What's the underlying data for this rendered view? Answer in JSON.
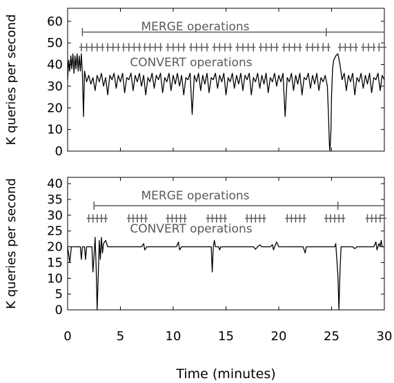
{
  "chart_data": [
    {
      "type": "line",
      "ylabel": "K queries per second",
      "xlim": [
        0,
        30
      ],
      "ylim": [
        0,
        66
      ],
      "yticks": [
        0,
        10,
        20,
        30,
        40,
        50,
        60
      ],
      "xticks": [
        0,
        5,
        10,
        15,
        20,
        25,
        30
      ],
      "show_xtick_labels": false,
      "grid": false,
      "merge": {
        "label": "MERGE operations",
        "level": 55,
        "marks": [
          1.4,
          24.5,
          30.0
        ]
      },
      "convert": {
        "label": "CONVERT operations",
        "level": 48,
        "groups": [
          [
            1.3,
            1.8,
            2.3,
            2.8,
            3.3
          ],
          [
            3.8,
            4.3,
            4.8
          ],
          [
            5.3,
            5.8,
            6.3,
            6.8
          ],
          [
            7.3,
            7.8,
            8.3,
            8.8
          ],
          [
            9.5,
            10.0,
            10.5,
            11.0
          ],
          [
            11.7,
            12.2,
            12.7,
            13.2
          ],
          [
            13.9,
            14.4,
            14.9,
            15.4
          ],
          [
            16.1,
            16.6,
            17.1,
            17.6
          ],
          [
            18.3,
            18.8,
            19.3,
            19.8
          ],
          [
            20.5,
            21.0,
            21.5,
            22.0
          ],
          [
            22.7,
            23.2,
            23.7
          ],
          [
            24.2,
            24.7
          ],
          [
            25.8,
            26.3,
            26.8,
            27.3
          ],
          [
            28.0,
            28.5,
            29.0
          ],
          [
            29.5,
            30.0
          ]
        ]
      },
      "series": [
        {
          "points": [
            [
              0.0,
              33
            ],
            [
              0.1,
              42
            ],
            [
              0.2,
              37
            ],
            [
              0.3,
              44
            ],
            [
              0.4,
              38
            ],
            [
              0.5,
              45
            ],
            [
              0.6,
              36
            ],
            [
              0.7,
              44
            ],
            [
              0.8,
              38
            ],
            [
              0.9,
              45
            ],
            [
              1.0,
              37
            ],
            [
              1.1,
              44
            ],
            [
              1.2,
              37
            ],
            [
              1.3,
              45
            ],
            [
              1.4,
              36
            ],
            [
              1.5,
              16
            ],
            [
              1.6,
              37
            ],
            [
              1.8,
              32
            ],
            [
              2.0,
              35
            ],
            [
              2.2,
              31
            ],
            [
              2.4,
              34
            ],
            [
              2.6,
              28
            ],
            [
              2.8,
              35
            ],
            [
              3.0,
              32
            ],
            [
              3.2,
              36
            ],
            [
              3.4,
              30
            ],
            [
              3.6,
              34
            ],
            [
              3.8,
              26
            ],
            [
              4.0,
              35
            ],
            [
              4.2,
              33
            ],
            [
              4.4,
              36
            ],
            [
              4.6,
              29
            ],
            [
              4.8,
              35
            ],
            [
              5.0,
              32
            ],
            [
              5.2,
              36
            ],
            [
              5.4,
              27
            ],
            [
              5.6,
              34
            ],
            [
              5.8,
              33
            ],
            [
              6.0,
              36
            ],
            [
              6.2,
              28
            ],
            [
              6.4,
              35
            ],
            [
              6.6,
              32
            ],
            [
              6.8,
              36
            ],
            [
              7.0,
              30
            ],
            [
              7.2,
              35
            ],
            [
              7.4,
              26
            ],
            [
              7.6,
              34
            ],
            [
              7.8,
              32
            ],
            [
              8.0,
              36
            ],
            [
              8.2,
              29
            ],
            [
              8.4,
              35
            ],
            [
              8.6,
              33
            ],
            [
              8.8,
              36
            ],
            [
              9.0,
              27
            ],
            [
              9.2,
              34
            ],
            [
              9.4,
              32
            ],
            [
              9.6,
              36
            ],
            [
              9.8,
              28
            ],
            [
              10.0,
              35
            ],
            [
              10.2,
              31
            ],
            [
              10.4,
              36
            ],
            [
              10.6,
              30
            ],
            [
              10.8,
              35
            ],
            [
              11.0,
              26
            ],
            [
              11.2,
              34
            ],
            [
              11.4,
              33
            ],
            [
              11.6,
              36
            ],
            [
              11.8,
              17
            ],
            [
              12.0,
              35
            ],
            [
              12.2,
              32
            ],
            [
              12.4,
              36
            ],
            [
              12.6,
              28
            ],
            [
              12.8,
              35
            ],
            [
              13.0,
              31
            ],
            [
              13.2,
              36
            ],
            [
              13.4,
              27
            ],
            [
              13.6,
              34
            ],
            [
              13.8,
              33
            ],
            [
              14.0,
              36
            ],
            [
              14.2,
              29
            ],
            [
              14.4,
              35
            ],
            [
              14.6,
              32
            ],
            [
              14.8,
              36
            ],
            [
              15.0,
              26
            ],
            [
              15.2,
              34
            ],
            [
              15.4,
              32
            ],
            [
              15.6,
              36
            ],
            [
              15.8,
              29
            ],
            [
              16.0,
              35
            ],
            [
              16.2,
              31
            ],
            [
              16.4,
              36
            ],
            [
              16.6,
              28
            ],
            [
              16.8,
              35
            ],
            [
              17.0,
              33
            ],
            [
              17.2,
              36
            ],
            [
              17.4,
              26
            ],
            [
              17.6,
              34
            ],
            [
              17.8,
              32
            ],
            [
              18.0,
              36
            ],
            [
              18.2,
              29
            ],
            [
              18.4,
              35
            ],
            [
              18.6,
              31
            ],
            [
              18.8,
              36
            ],
            [
              19.0,
              27
            ],
            [
              19.2,
              34
            ],
            [
              19.4,
              32
            ],
            [
              19.6,
              36
            ],
            [
              19.8,
              30
            ],
            [
              20.0,
              35
            ],
            [
              20.2,
              32
            ],
            [
              20.4,
              36
            ],
            [
              20.6,
              16
            ],
            [
              20.8,
              34
            ],
            [
              21.0,
              32
            ],
            [
              21.2,
              36
            ],
            [
              21.4,
              28
            ],
            [
              21.6,
              35
            ],
            [
              21.8,
              31
            ],
            [
              22.0,
              36
            ],
            [
              22.2,
              26
            ],
            [
              22.4,
              34
            ],
            [
              22.6,
              33
            ],
            [
              22.8,
              36
            ],
            [
              23.0,
              29
            ],
            [
              23.2,
              35
            ],
            [
              23.4,
              31
            ],
            [
              23.6,
              36
            ],
            [
              23.8,
              28
            ],
            [
              24.0,
              34
            ],
            [
              24.2,
              32
            ],
            [
              24.4,
              35
            ],
            [
              24.6,
              30
            ],
            [
              24.7,
              18
            ],
            [
              24.8,
              3
            ],
            [
              24.85,
              0
            ],
            [
              24.95,
              10
            ],
            [
              25.0,
              26
            ],
            [
              25.1,
              38
            ],
            [
              25.2,
              42
            ],
            [
              25.4,
              44
            ],
            [
              25.6,
              45
            ],
            [
              25.8,
              40
            ],
            [
              26.0,
              33
            ],
            [
              26.2,
              36
            ],
            [
              26.4,
              28
            ],
            [
              26.6,
              35
            ],
            [
              26.8,
              32
            ],
            [
              27.0,
              36
            ],
            [
              27.2,
              26
            ],
            [
              27.4,
              34
            ],
            [
              27.6,
              32
            ],
            [
              27.8,
              36
            ],
            [
              28.0,
              29
            ],
            [
              28.2,
              35
            ],
            [
              28.4,
              31
            ],
            [
              28.6,
              36
            ],
            [
              28.8,
              27
            ],
            [
              29.0,
              34
            ],
            [
              29.2,
              33
            ],
            [
              29.4,
              36
            ],
            [
              29.6,
              28
            ],
            [
              29.8,
              35
            ],
            [
              30.0,
              33
            ]
          ]
        }
      ]
    },
    {
      "type": "line",
      "ylabel": "K queries per second",
      "xlabel": "Time (minutes)",
      "xlim": [
        0,
        30
      ],
      "ylim": [
        0,
        42
      ],
      "yticks": [
        0,
        5,
        10,
        15,
        20,
        25,
        30,
        35,
        40
      ],
      "xticks": [
        0,
        5,
        10,
        15,
        20,
        25,
        30
      ],
      "show_xtick_labels": true,
      "grid": false,
      "merge": {
        "label": "MERGE operations",
        "level": 33,
        "marks": [
          2.5,
          25.6
        ]
      },
      "convert": {
        "label": "CONVERT operations",
        "level": 29,
        "groups": [
          [
            2.0,
            2.4,
            2.8,
            3.2,
            3.6
          ],
          [
            5.8,
            6.2,
            6.6,
            7.0,
            7.4
          ],
          [
            9.5,
            9.9,
            10.3,
            10.7,
            11.1
          ],
          [
            13.3,
            13.7,
            14.1,
            14.5,
            14.9
          ],
          [
            17.0,
            17.4,
            17.8,
            18.2,
            18.6
          ],
          [
            20.8,
            21.2,
            21.6,
            22.0,
            22.4
          ],
          [
            24.5,
            24.9,
            25.3,
            25.7,
            26.1
          ],
          [
            28.4,
            28.8,
            29.2,
            29.6,
            30.0
          ]
        ]
      },
      "series": [
        {
          "points": [
            [
              0.0,
              20
            ],
            [
              0.2,
              15
            ],
            [
              0.35,
              20
            ],
            [
              1.2,
              20
            ],
            [
              1.3,
              16
            ],
            [
              1.4,
              20
            ],
            [
              1.6,
              20
            ],
            [
              1.7,
              16
            ],
            [
              1.8,
              20
            ],
            [
              2.3,
              20
            ],
            [
              2.4,
              12
            ],
            [
              2.5,
              17
            ],
            [
              2.6,
              23
            ],
            [
              2.7,
              14
            ],
            [
              2.8,
              0
            ],
            [
              2.9,
              11
            ],
            [
              3.0,
              22
            ],
            [
              3.1,
              16
            ],
            [
              3.2,
              23
            ],
            [
              3.3,
              18
            ],
            [
              3.4,
              21
            ],
            [
              3.6,
              22
            ],
            [
              3.8,
              20
            ],
            [
              7.0,
              20
            ],
            [
              7.2,
              21
            ],
            [
              7.3,
              19
            ],
            [
              7.5,
              20
            ],
            [
              10.3,
              20
            ],
            [
              10.5,
              21.5
            ],
            [
              10.6,
              19
            ],
            [
              10.8,
              20
            ],
            [
              13.6,
              20
            ],
            [
              13.7,
              12
            ],
            [
              13.8,
              20
            ],
            [
              13.9,
              22
            ],
            [
              14.0,
              20
            ],
            [
              14.3,
              20
            ],
            [
              14.4,
              19
            ],
            [
              14.5,
              20
            ],
            [
              17.6,
              20
            ],
            [
              17.8,
              19.2
            ],
            [
              18.0,
              20
            ],
            [
              18.2,
              20.6
            ],
            [
              18.4,
              20
            ],
            [
              19.2,
              20
            ],
            [
              19.4,
              20.7
            ],
            [
              19.5,
              19
            ],
            [
              19.6,
              20
            ],
            [
              19.8,
              21.5
            ],
            [
              20.0,
              20
            ],
            [
              22.3,
              20
            ],
            [
              22.5,
              18
            ],
            [
              22.6,
              20
            ],
            [
              25.3,
              20
            ],
            [
              25.4,
              21
            ],
            [
              25.6,
              11
            ],
            [
              25.7,
              0
            ],
            [
              25.8,
              12
            ],
            [
              25.9,
              20
            ],
            [
              27.0,
              20
            ],
            [
              27.2,
              19.4
            ],
            [
              27.4,
              20
            ],
            [
              29.0,
              20
            ],
            [
              29.2,
              21.5
            ],
            [
              29.3,
              19
            ],
            [
              29.5,
              21
            ],
            [
              29.6,
              20
            ],
            [
              29.7,
              22
            ],
            [
              29.8,
              20
            ],
            [
              30.0,
              20
            ]
          ]
        }
      ]
    }
  ]
}
